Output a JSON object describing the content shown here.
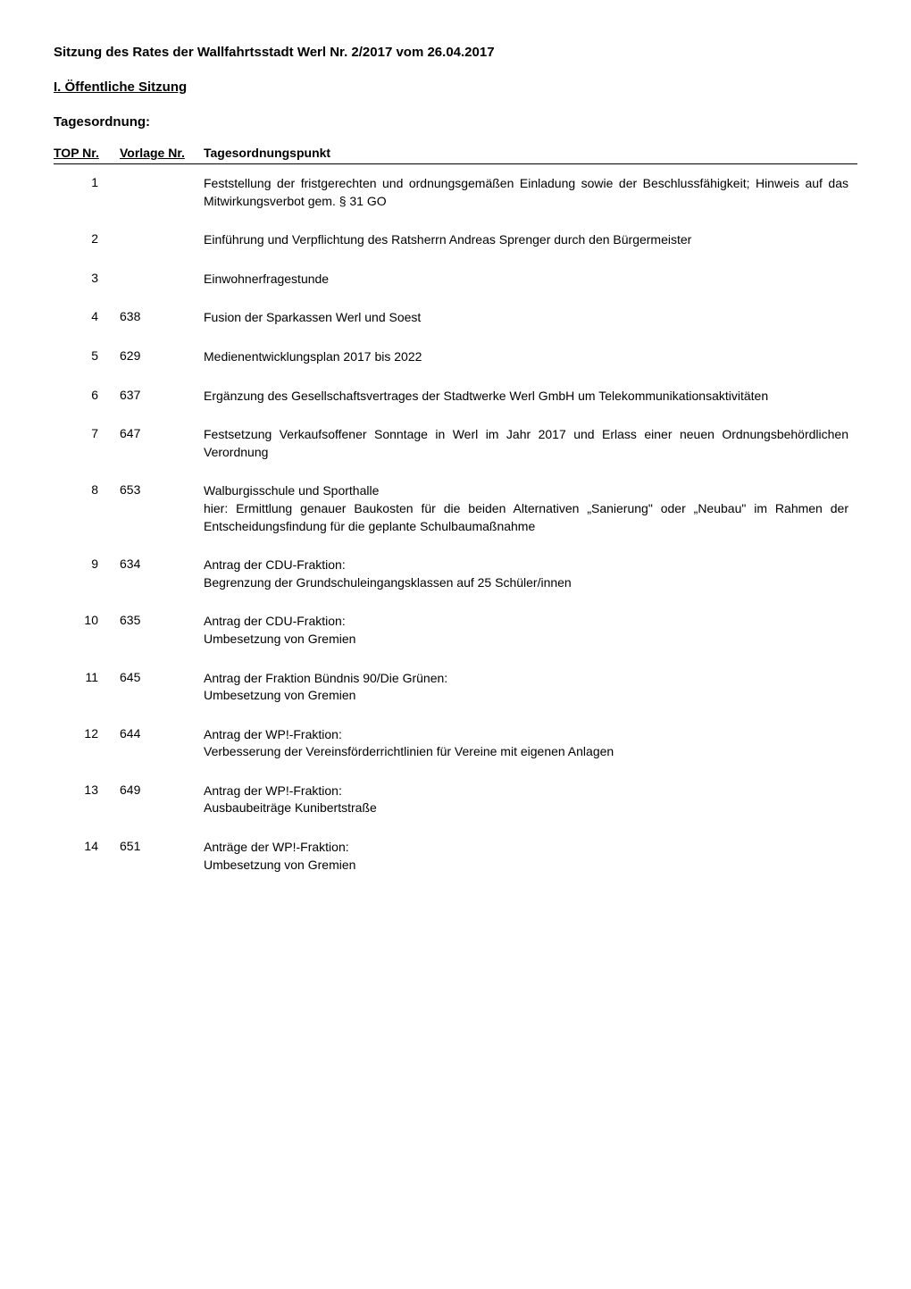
{
  "title": "Sitzung des Rates der Wallfahrtsstadt Werl Nr. 2/2017 vom 26.04.2017",
  "section_heading": "I. Öffentliche Sitzung",
  "subheading": "Tagesordnung:",
  "table": {
    "headers": {
      "top": "TOP Nr.",
      "vorlage": "Vorlage Nr.",
      "text": "Tagesordnungspunkt"
    },
    "rows": [
      {
        "top": "1",
        "vorlage": "",
        "text": "Feststellung der fristgerechten und ordnungsgemäßen Einladung sowie der Beschlussfähigkeit; Hinweis auf das Mitwirkungsverbot gem. § 31 GO"
      },
      {
        "top": "2",
        "vorlage": "",
        "text": "Einführung und Verpflichtung des Ratsherrn Andreas Sprenger durch den Bürgermeister"
      },
      {
        "top": "3",
        "vorlage": "",
        "text": "Einwohnerfragestunde"
      },
      {
        "top": "4",
        "vorlage": "638",
        "text": "Fusion der Sparkassen Werl und Soest"
      },
      {
        "top": "5",
        "vorlage": "629",
        "text": "Medienentwicklungsplan 2017 bis 2022"
      },
      {
        "top": "6",
        "vorlage": "637",
        "text": "Ergänzung des Gesellschaftsvertrages der Stadtwerke Werl GmbH um Telekommunikationsaktivitäten"
      },
      {
        "top": "7",
        "vorlage": "647",
        "text": "Festsetzung Verkaufsoffener Sonntage in Werl im Jahr 2017 und Erlass einer neuen Ordnungsbehördlichen Verordnung"
      },
      {
        "top": "8",
        "vorlage": "653",
        "text": "Walburgisschule und Sporthalle\nhier: Ermittlung genauer Baukosten für die beiden Alternativen „Sanierung\" oder „Neubau\" im Rahmen der Entscheidungsfindung für die geplante Schulbaumaßnahme"
      },
      {
        "top": "9",
        "vorlage": "634",
        "text": "Antrag der CDU-Fraktion:\nBegrenzung der Grundschuleingangsklassen auf 25 Schüler/innen"
      },
      {
        "top": "10",
        "vorlage": "635",
        "text": "Antrag der CDU-Fraktion:\nUmbesetzung von Gremien"
      },
      {
        "top": "11",
        "vorlage": "645",
        "text": "Antrag der Fraktion Bündnis 90/Die Grünen:\nUmbesetzung von Gremien"
      },
      {
        "top": "12",
        "vorlage": "644",
        "text": "Antrag der WP!-Fraktion:\nVerbesserung der Vereinsförderrichtlinien für Vereine mit eigenen Anlagen"
      },
      {
        "top": "13",
        "vorlage": "649",
        "text": "Antrag der WP!-Fraktion:\nAusbaubeiträge Kunibertstraße"
      },
      {
        "top": "14",
        "vorlage": "651",
        "text": "Anträge der WP!-Fraktion:\nUmbesetzung von Gremien"
      }
    ]
  }
}
